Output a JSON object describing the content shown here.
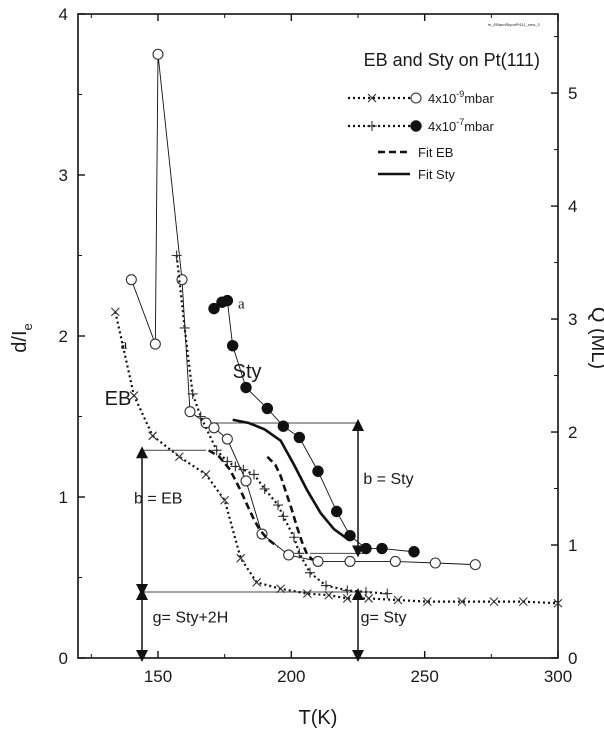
{
  "chart_data": {
    "type": "scatter",
    "title": "EB and Sty on Pt(111)",
    "file_tag": "m_EBandStyonPt111_new_2",
    "xlabel": "T(K)",
    "ylabel_left": "d/I",
    "ylabel_left_sub": "e",
    "ylabel_right": "Q (ML)",
    "xlim": [
      120,
      300
    ],
    "ylim_left": [
      0,
      4
    ],
    "ylim_right": [
      0,
      5.7
    ],
    "x_ticks": [
      "150",
      "200",
      "250",
      "300"
    ],
    "x_tick_values": [
      150,
      200,
      250,
      300
    ],
    "y_left_ticks": [
      "0",
      "1",
      "2",
      "3",
      "4"
    ],
    "y_left_tick_values": [
      0,
      1,
      2,
      3,
      4
    ],
    "y_right_ticks": [
      "0",
      "1",
      "2",
      "3",
      "4",
      "5"
    ],
    "y_right_tick_values": [
      0,
      1,
      2,
      3,
      4,
      5
    ],
    "legend": [
      {
        "label": "4x10",
        "exp": "-9",
        "unit": "mbar",
        "style": "dotted-cross-open"
      },
      {
        "label": "4x10",
        "exp": "-7",
        "unit": "mbar",
        "style": "dotted-plus-filled"
      },
      {
        "label": "Fit EB",
        "style": "dashed"
      },
      {
        "label": "Fit Sty",
        "style": "solid"
      }
    ],
    "series": [
      {
        "name": "4x10-9mbar",
        "marker": "cross",
        "line": "dotted",
        "x": [
          134,
          141,
          148,
          158,
          168,
          175,
          181,
          187,
          196,
          206,
          214,
          221,
          229,
          240,
          251,
          264,
          276,
          287,
          300
        ],
        "y": [
          2.15,
          1.63,
          1.38,
          1.25,
          1.14,
          0.98,
          0.62,
          0.47,
          0.43,
          0.4,
          0.39,
          0.37,
          0.37,
          0.36,
          0.35,
          0.35,
          0.35,
          0.35,
          0.34
        ]
      },
      {
        "name": "4x10-9mbar",
        "marker": "open-circle",
        "line": "solid-thin",
        "x": [
          140,
          149,
          150,
          159,
          162,
          168,
          171,
          176,
          183,
          189,
          199,
          210,
          222,
          239,
          254,
          269
        ],
        "y": [
          2.35,
          1.95,
          3.75,
          2.35,
          1.53,
          1.46,
          1.43,
          1.36,
          1.1,
          0.77,
          0.64,
          0.6,
          0.6,
          0.6,
          0.59,
          0.58
        ]
      },
      {
        "name": "4x10-7mbar",
        "marker": "plus",
        "line": "dotted",
        "x": [
          157,
          160,
          163,
          166,
          172,
          176,
          179,
          182,
          186,
          190,
          195,
          197,
          201,
          203,
          207,
          213,
          221,
          228,
          236
        ],
        "y": [
          2.5,
          2.05,
          1.64,
          1.5,
          1.29,
          1.22,
          1.19,
          1.17,
          1.14,
          1.05,
          0.95,
          0.88,
          0.75,
          0.65,
          0.53,
          0.45,
          0.42,
          0.41,
          0.4
        ]
      },
      {
        "name": "4x10-7mbar",
        "marker": "filled-circle",
        "line": "solid-thin",
        "x": [
          171,
          174,
          176,
          178,
          183,
          191,
          197,
          203,
          210,
          217,
          222,
          228,
          234,
          246
        ],
        "y": [
          2.17,
          2.21,
          2.22,
          1.94,
          1.68,
          1.55,
          1.44,
          1.37,
          1.16,
          0.91,
          0.76,
          0.68,
          0.68,
          0.66
        ]
      },
      {
        "name": "Fit EB",
        "line": "dashed",
        "x": [
          169,
          173,
          177,
          181,
          184,
          186,
          188,
          191,
          195
        ],
        "y": [
          1.29,
          1.25,
          1.17,
          1.04,
          0.93,
          0.86,
          0.8,
          0.74,
          0.69
        ]
      },
      {
        "name": "Fit Sty",
        "line": "solid-thick",
        "x": [
          178,
          184,
          190,
          196,
          201,
          206,
          211,
          216,
          221
        ],
        "y": [
          1.48,
          1.46,
          1.42,
          1.35,
          1.2,
          1.04,
          0.9,
          0.8,
          0.74
        ]
      },
      {
        "name": "Fit EB",
        "line": "dashed",
        "x": [
          191,
          194,
          196,
          198,
          200,
          202,
          204,
          206,
          208
        ],
        "y": [
          1.25,
          1.2,
          1.13,
          1.03,
          0.93,
          0.82,
          0.72,
          0.64,
          0.61
        ]
      }
    ],
    "annotations": [
      {
        "text": "EB",
        "x": 130,
        "y": 1.57,
        "class": "series-label"
      },
      {
        "text": "Sty",
        "x": 178,
        "y": 1.74,
        "class": "series-label"
      },
      {
        "text": "a",
        "x": 136,
        "y": 1.92,
        "class": "mark-a"
      },
      {
        "text": "a",
        "x": 180,
        "y": 2.17,
        "class": "mark-a"
      },
      {
        "text": "b = EB",
        "x": 141,
        "y": 0.96,
        "class": "annot"
      },
      {
        "text": "b = Sty",
        "x": 227,
        "y": 1.08,
        "class": "annot"
      },
      {
        "text": "g= Sty+2H",
        "x": 148,
        "y": 0.22,
        "class": "annot"
      },
      {
        "text": "g= Sty",
        "x": 226,
        "y": 0.22,
        "class": "annot"
      }
    ],
    "reference_lines": [
      {
        "x1": 144,
        "x2": 168,
        "y": 1.29
      },
      {
        "x1": 170,
        "x2": 225,
        "y": 1.46
      },
      {
        "x1": 144,
        "x2": 225,
        "y": 0.41
      },
      {
        "x1": 207,
        "x2": 229,
        "y": 0.65
      }
    ],
    "arrows": [
      {
        "x": 144,
        "y1": 1.29,
        "y2": 0.41
      },
      {
        "x": 144,
        "y1": 0.41,
        "y2": 0.0
      },
      {
        "x": 225,
        "y1": 1.46,
        "y2": 0.65
      },
      {
        "x": 225,
        "y1": 0.41,
        "y2": 0.0
      }
    ]
  }
}
